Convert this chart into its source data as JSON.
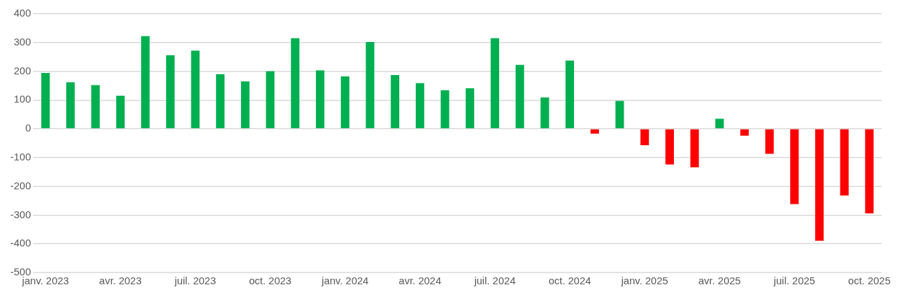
{
  "chart_data": {
    "type": "bar",
    "categories": [
      "janv. 2023",
      null,
      null,
      "avr. 2023",
      null,
      null,
      "juil. 2023",
      null,
      null,
      "oct. 2023",
      null,
      null,
      "janv. 2024",
      null,
      null,
      "avr. 2024",
      null,
      null,
      "juil. 2024",
      null,
      null,
      "oct. 2024",
      null,
      null,
      "janv. 2025",
      null,
      null,
      "avr. 2025",
      null,
      null,
      "juil. 2025",
      null,
      null,
      "oct. 2025"
    ],
    "values": [
      194,
      162,
      152,
      115,
      322,
      256,
      272,
      190,
      165,
      200,
      315,
      203,
      182,
      302,
      187,
      159,
      134,
      141,
      315,
      222,
      109,
      237,
      -17,
      97,
      -57,
      -124,
      -134,
      35,
      -24,
      -87,
      -262,
      -389,
      -232,
      -294
    ],
    "colors": [
      "#00b050",
      "#00b050",
      "#00b050",
      "#00b050",
      "#00b050",
      "#00b050",
      "#00b050",
      "#00b050",
      "#00b050",
      "#00b050",
      "#00b050",
      "#00b050",
      "#00b050",
      "#00b050",
      "#00b050",
      "#00b050",
      "#00b050",
      "#00b050",
      "#00b050",
      "#00b050",
      "#00b050",
      "#00b050",
      "#ff0000",
      "#00b050",
      "#ff0000",
      "#ff0000",
      "#ff0000",
      "#00b050",
      "#ff0000",
      "#ff0000",
      "#ff0000",
      "#ff0000",
      "#ff0000",
      "#ff0000"
    ],
    "ylim": [
      -500,
      400
    ],
    "yticks": [
      -500,
      -400,
      -300,
      -200,
      -100,
      0,
      100,
      200,
      300,
      400
    ],
    "grid": "y",
    "legend": false
  }
}
